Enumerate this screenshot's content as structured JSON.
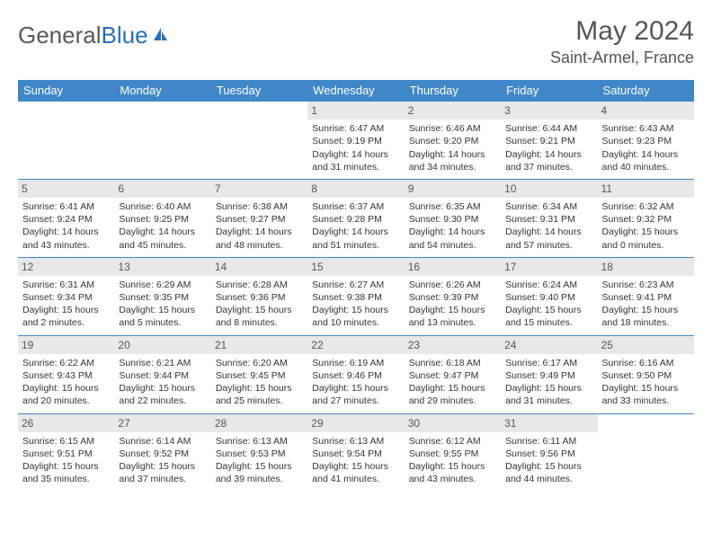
{
  "logo": {
    "part1": "General",
    "part2": "Blue"
  },
  "title": "May 2024",
  "location": "Saint-Armel, France",
  "colors": {
    "header_bg": "#3f87c7",
    "border": "#3f87c7",
    "daynum_bg": "#e8e8e8",
    "text": "#333333",
    "logo_gray": "#5a5a5a",
    "logo_blue": "#2a6db8"
  },
  "day_headers": [
    "Sunday",
    "Monday",
    "Tuesday",
    "Wednesday",
    "Thursday",
    "Friday",
    "Saturday"
  ],
  "weeks": [
    [
      null,
      null,
      null,
      {
        "n": "1",
        "sr": "6:47 AM",
        "ss": "9:19 PM",
        "dl": "14 hours and 31 minutes."
      },
      {
        "n": "2",
        "sr": "6:46 AM",
        "ss": "9:20 PM",
        "dl": "14 hours and 34 minutes."
      },
      {
        "n": "3",
        "sr": "6:44 AM",
        "ss": "9:21 PM",
        "dl": "14 hours and 37 minutes."
      },
      {
        "n": "4",
        "sr": "6:43 AM",
        "ss": "9:23 PM",
        "dl": "14 hours and 40 minutes."
      }
    ],
    [
      {
        "n": "5",
        "sr": "6:41 AM",
        "ss": "9:24 PM",
        "dl": "14 hours and 43 minutes."
      },
      {
        "n": "6",
        "sr": "6:40 AM",
        "ss": "9:25 PM",
        "dl": "14 hours and 45 minutes."
      },
      {
        "n": "7",
        "sr": "6:38 AM",
        "ss": "9:27 PM",
        "dl": "14 hours and 48 minutes."
      },
      {
        "n": "8",
        "sr": "6:37 AM",
        "ss": "9:28 PM",
        "dl": "14 hours and 51 minutes."
      },
      {
        "n": "9",
        "sr": "6:35 AM",
        "ss": "9:30 PM",
        "dl": "14 hours and 54 minutes."
      },
      {
        "n": "10",
        "sr": "6:34 AM",
        "ss": "9:31 PM",
        "dl": "14 hours and 57 minutes."
      },
      {
        "n": "11",
        "sr": "6:32 AM",
        "ss": "9:32 PM",
        "dl": "15 hours and 0 minutes."
      }
    ],
    [
      {
        "n": "12",
        "sr": "6:31 AM",
        "ss": "9:34 PM",
        "dl": "15 hours and 2 minutes."
      },
      {
        "n": "13",
        "sr": "6:29 AM",
        "ss": "9:35 PM",
        "dl": "15 hours and 5 minutes."
      },
      {
        "n": "14",
        "sr": "6:28 AM",
        "ss": "9:36 PM",
        "dl": "15 hours and 8 minutes."
      },
      {
        "n": "15",
        "sr": "6:27 AM",
        "ss": "9:38 PM",
        "dl": "15 hours and 10 minutes."
      },
      {
        "n": "16",
        "sr": "6:26 AM",
        "ss": "9:39 PM",
        "dl": "15 hours and 13 minutes."
      },
      {
        "n": "17",
        "sr": "6:24 AM",
        "ss": "9:40 PM",
        "dl": "15 hours and 15 minutes."
      },
      {
        "n": "18",
        "sr": "6:23 AM",
        "ss": "9:41 PM",
        "dl": "15 hours and 18 minutes."
      }
    ],
    [
      {
        "n": "19",
        "sr": "6:22 AM",
        "ss": "9:43 PM",
        "dl": "15 hours and 20 minutes."
      },
      {
        "n": "20",
        "sr": "6:21 AM",
        "ss": "9:44 PM",
        "dl": "15 hours and 22 minutes."
      },
      {
        "n": "21",
        "sr": "6:20 AM",
        "ss": "9:45 PM",
        "dl": "15 hours and 25 minutes."
      },
      {
        "n": "22",
        "sr": "6:19 AM",
        "ss": "9:46 PM",
        "dl": "15 hours and 27 minutes."
      },
      {
        "n": "23",
        "sr": "6:18 AM",
        "ss": "9:47 PM",
        "dl": "15 hours and 29 minutes."
      },
      {
        "n": "24",
        "sr": "6:17 AM",
        "ss": "9:49 PM",
        "dl": "15 hours and 31 minutes."
      },
      {
        "n": "25",
        "sr": "6:16 AM",
        "ss": "9:50 PM",
        "dl": "15 hours and 33 minutes."
      }
    ],
    [
      {
        "n": "26",
        "sr": "6:15 AM",
        "ss": "9:51 PM",
        "dl": "15 hours and 35 minutes."
      },
      {
        "n": "27",
        "sr": "6:14 AM",
        "ss": "9:52 PM",
        "dl": "15 hours and 37 minutes."
      },
      {
        "n": "28",
        "sr": "6:13 AM",
        "ss": "9:53 PM",
        "dl": "15 hours and 39 minutes."
      },
      {
        "n": "29",
        "sr": "6:13 AM",
        "ss": "9:54 PM",
        "dl": "15 hours and 41 minutes."
      },
      {
        "n": "30",
        "sr": "6:12 AM",
        "ss": "9:55 PM",
        "dl": "15 hours and 43 minutes."
      },
      {
        "n": "31",
        "sr": "6:11 AM",
        "ss": "9:56 PM",
        "dl": "15 hours and 44 minutes."
      },
      null
    ]
  ],
  "labels": {
    "sunrise": "Sunrise:",
    "sunset": "Sunset:",
    "daylight": "Daylight:"
  }
}
